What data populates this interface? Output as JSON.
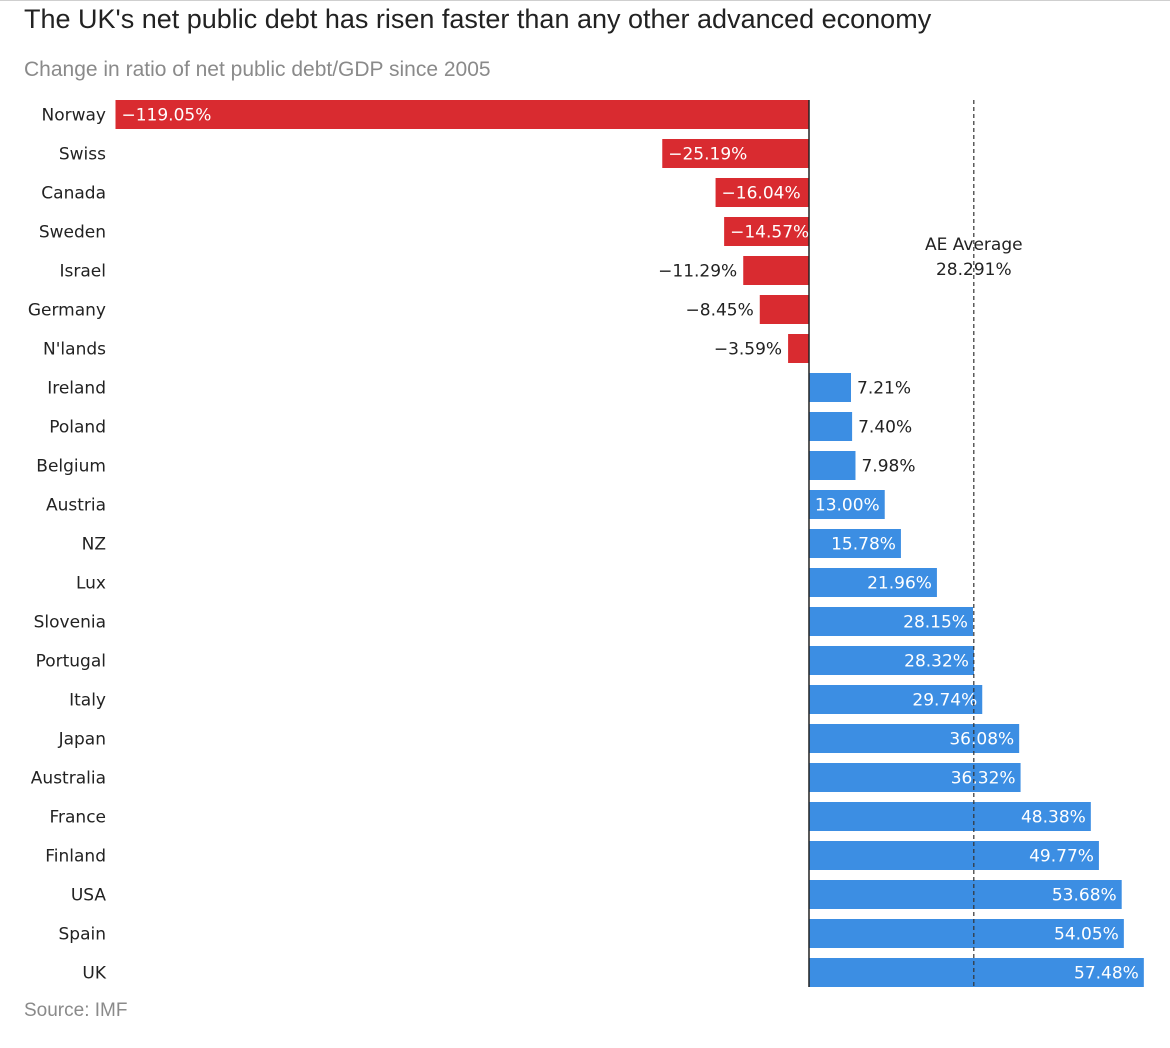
{
  "title": "The UK's net public debt has risen faster than any other advanced economy",
  "subtitle": "Change in ratio of net public debt/GDP since 2005",
  "source": "Source: IMF",
  "colors": {
    "negative": "#d92b30",
    "positive": "#3c8ee3",
    "text": "#222222",
    "muted": "#8a8a8a"
  },
  "chart_data": {
    "type": "bar",
    "orientation": "horizontal",
    "title": "The UK's net public debt has risen faster than any other advanced economy",
    "subtitle": "Change in ratio of net public debt/GDP since 2005",
    "unit": "%",
    "xlim": [
      -119.05,
      57.48
    ],
    "categories": [
      "Norway",
      "Swiss",
      "Canada",
      "Sweden",
      "Israel",
      "Germany",
      "N'lands",
      "Ireland",
      "Poland",
      "Belgium",
      "Austria",
      "NZ",
      "Lux",
      "Slovenia",
      "Portugal",
      "Italy",
      "Japan",
      "Australia",
      "France",
      "Finland",
      "USA",
      "Spain",
      "UK"
    ],
    "values": [
      -119.05,
      -25.19,
      -16.04,
      -14.57,
      -11.29,
      -8.45,
      -3.59,
      7.21,
      7.4,
      7.98,
      13.0,
      15.78,
      21.96,
      28.15,
      28.32,
      29.74,
      36.08,
      36.32,
      48.38,
      49.77,
      53.68,
      54.05,
      57.48
    ],
    "labels": [
      "−119.05%",
      "−25.19%",
      "−16.04%",
      "−14.57%",
      "−11.29%",
      "−8.45%",
      "−3.59%",
      "7.21%",
      "7.40%",
      "7.98%",
      "13.00%",
      "15.78%",
      "21.96%",
      "28.15%",
      "28.32%",
      "29.74%",
      "36.08%",
      "36.32%",
      "48.38%",
      "49.77%",
      "53.68%",
      "54.05%",
      "57.48%"
    ],
    "reference_line": {
      "value": 28.291,
      "label_line1": "AE Average",
      "label_line2": "28.291%",
      "style": "dashed"
    }
  }
}
